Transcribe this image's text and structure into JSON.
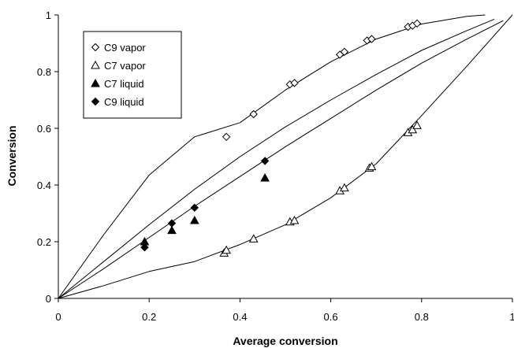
{
  "chart_data": {
    "type": "scatter",
    "xlabel": "Average conversion",
    "ylabel": "Conversion",
    "xlim": [
      0,
      1
    ],
    "ylim": [
      0,
      1
    ],
    "x_ticks": [
      "0",
      "0.2",
      "0.4",
      "0.6",
      "0.8",
      "1"
    ],
    "y_ticks": [
      "0",
      "0.2",
      "0.4",
      "0.6",
      "0.8",
      "1"
    ],
    "grid": false,
    "legend_position": "top-left",
    "series": [
      {
        "name": "C9 vapor",
        "marker": "diamond-open",
        "points": [
          [
            0.37,
            0.57
          ],
          [
            0.43,
            0.65
          ],
          [
            0.51,
            0.755
          ],
          [
            0.52,
            0.76
          ],
          [
            0.62,
            0.86
          ],
          [
            0.63,
            0.87
          ],
          [
            0.68,
            0.91
          ],
          [
            0.69,
            0.915
          ],
          [
            0.77,
            0.958
          ],
          [
            0.78,
            0.962
          ],
          [
            0.79,
            0.97
          ]
        ]
      },
      {
        "name": "C7 vapor",
        "marker": "triangle-open",
        "points": [
          [
            0.365,
            0.16
          ],
          [
            0.37,
            0.17
          ],
          [
            0.43,
            0.21
          ],
          [
            0.51,
            0.27
          ],
          [
            0.52,
            0.275
          ],
          [
            0.62,
            0.38
          ],
          [
            0.63,
            0.39
          ],
          [
            0.685,
            0.46
          ],
          [
            0.69,
            0.465
          ],
          [
            0.77,
            0.585
          ],
          [
            0.78,
            0.595
          ],
          [
            0.79,
            0.61
          ]
        ]
      },
      {
        "name": "C7 liquid",
        "marker": "triangle-filled",
        "points": [
          [
            0.19,
            0.2
          ],
          [
            0.25,
            0.24
          ],
          [
            0.3,
            0.275
          ],
          [
            0.455,
            0.425
          ]
        ]
      },
      {
        "name": "C9 liquid",
        "marker": "diamond-filled",
        "points": [
          [
            0.19,
            0.18
          ],
          [
            0.25,
            0.265
          ],
          [
            0.3,
            0.32
          ],
          [
            0.455,
            0.485
          ]
        ]
      }
    ],
    "curves": [
      {
        "style": "line",
        "points": [
          [
            0,
            0
          ],
          [
            0.1,
            0.225
          ],
          [
            0.2,
            0.435
          ],
          [
            0.3,
            0.57
          ],
          [
            0.4,
            0.62
          ],
          [
            0.5,
            0.735
          ],
          [
            0.6,
            0.835
          ],
          [
            0.7,
            0.915
          ],
          [
            0.8,
            0.968
          ],
          [
            0.9,
            0.995
          ],
          [
            0.94,
            1.0
          ]
        ]
      },
      {
        "style": "line",
        "points": [
          [
            0,
            0
          ],
          [
            0.1,
            0.13
          ],
          [
            0.2,
            0.26
          ],
          [
            0.3,
            0.385
          ],
          [
            0.4,
            0.5
          ],
          [
            0.5,
            0.605
          ],
          [
            0.6,
            0.7
          ],
          [
            0.7,
            0.79
          ],
          [
            0.8,
            0.875
          ],
          [
            0.9,
            0.945
          ],
          [
            0.96,
            0.985
          ]
        ]
      },
      {
        "style": "line",
        "points": [
          [
            0,
            0
          ],
          [
            0.1,
            0.105
          ],
          [
            0.2,
            0.215
          ],
          [
            0.3,
            0.325
          ],
          [
            0.4,
            0.43
          ],
          [
            0.5,
            0.535
          ],
          [
            0.6,
            0.635
          ],
          [
            0.7,
            0.735
          ],
          [
            0.8,
            0.83
          ],
          [
            0.9,
            0.915
          ],
          [
            0.98,
            0.98
          ]
        ]
      },
      {
        "style": "line",
        "points": [
          [
            0,
            0
          ],
          [
            0.1,
            0.045
          ],
          [
            0.2,
            0.095
          ],
          [
            0.3,
            0.13
          ],
          [
            0.4,
            0.19
          ],
          [
            0.5,
            0.26
          ],
          [
            0.6,
            0.355
          ],
          [
            0.7,
            0.475
          ],
          [
            0.8,
            0.645
          ],
          [
            0.9,
            0.82
          ],
          [
            1.0,
            1.0
          ]
        ]
      }
    ]
  }
}
